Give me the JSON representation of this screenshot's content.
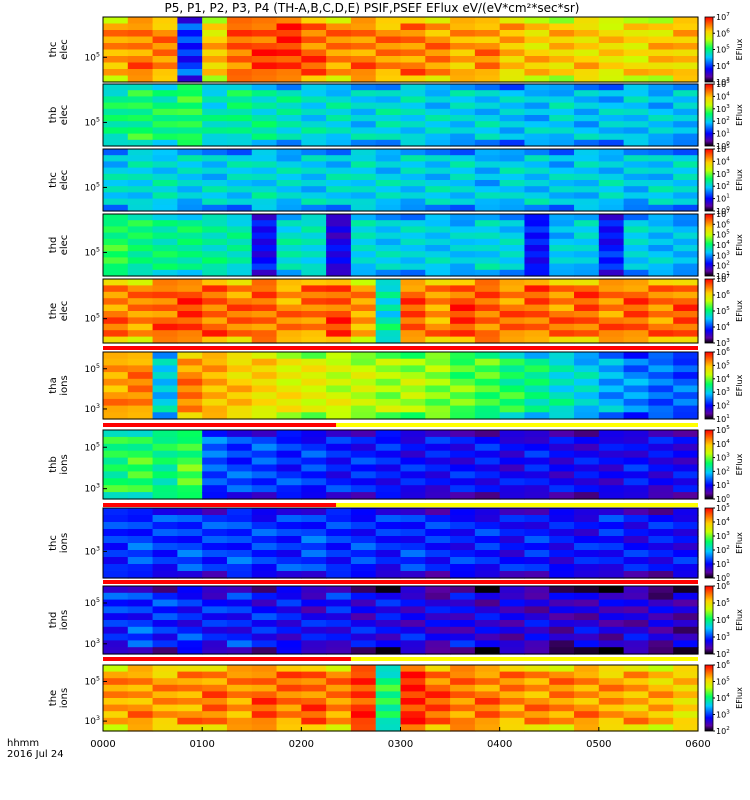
{
  "title": "P5, P1, P2, P3, P4 (TH-A,B,C,D,E) PSIF,PSEF EFlux eV/(eV*cm²*sec*sr)",
  "colorbar_label": "EFlux",
  "footer": {
    "time_format": "hhmm",
    "date": "2016 Jul 24"
  },
  "x_ticks": [
    "0000",
    "0100",
    "0200",
    "0300",
    "0400",
    "0500",
    "0600"
  ],
  "colors": {
    "status_red": "#ff0000",
    "status_yellow": "#ffff00",
    "background": "#ffffff"
  },
  "chart_data": {
    "type": "heatmap",
    "x_range": [
      "0000",
      "0600"
    ],
    "x_unit": "hhmm",
    "panels": [
      {
        "probe": "thc",
        "species": "elec",
        "y_tick": "10^5",
        "colorbar": {
          "min_exp": 3,
          "max_exp": 7
        },
        "profile": [
          6.3,
          6.5,
          6.4,
          4.0,
          6.1,
          6.6,
          6.7,
          6.8,
          6.6,
          6.4,
          6.5,
          6.4,
          6.5,
          6.4,
          6.3,
          6.4,
          6.2,
          6.1,
          6.1,
          6.1,
          6.0,
          6.0,
          6.1,
          6.2
        ]
      },
      {
        "probe": "thb",
        "species": "elec",
        "y_tick": "10^5",
        "colorbar": {
          "min_exp": 0,
          "max_exp": 5
        },
        "profile": [
          2.4,
          2.6,
          2.5,
          2.7,
          2.2,
          2.4,
          2.3,
          2.2,
          2.1,
          2.1,
          2.0,
          2.1,
          2.1,
          2.0,
          2.0,
          2.0,
          1.9,
          1.9,
          2.0,
          1.9,
          1.9,
          2.0,
          1.9,
          1.9
        ]
      },
      {
        "probe": "thc",
        "species": "elec",
        "y_tick": "10^5",
        "colorbar": {
          "min_exp": 0,
          "max_exp": 5
        },
        "profile": [
          2.0,
          2.1,
          2.1,
          2.0,
          2.0,
          2.0,
          2.1,
          2.0,
          2.0,
          2.0,
          2.1,
          2.0,
          2.0,
          2.0,
          2.0,
          1.9,
          2.0,
          2.0,
          1.9,
          2.0,
          2.0,
          1.9,
          2.0,
          2.0
        ]
      },
      {
        "probe": "thd",
        "species": "elec",
        "y_tick": "10^5",
        "colorbar": {
          "min_exp": 1,
          "max_exp": 7
        },
        "profile": [
          4.2,
          4.0,
          3.9,
          3.9,
          3.8,
          3.7,
          2.2,
          3.6,
          3.6,
          2.0,
          3.5,
          3.4,
          3.4,
          3.4,
          3.3,
          3.5,
          3.4,
          2.3,
          3.3,
          3.4,
          2.3,
          3.4,
          3.3,
          3.2
        ]
      },
      {
        "probe": "the",
        "species": "elec",
        "y_tick": "10^5",
        "colorbar": {
          "min_exp": 3,
          "max_exp": 7
        },
        "profile": [
          6.5,
          6.4,
          6.6,
          6.7,
          6.6,
          6.5,
          6.6,
          6.4,
          6.5,
          6.7,
          6.3,
          4.8,
          6.6,
          6.4,
          6.7,
          6.6,
          6.5,
          6.6,
          6.5,
          6.6,
          6.5,
          6.6,
          6.5,
          6.6
        ]
      },
      {
        "probe": "tha",
        "species": "ions",
        "y_ticks": [
          "10^5",
          "10^3"
        ],
        "colorbar": {
          "min_exp": 1,
          "max_exp": 6
        },
        "profile": [
          5.2,
          5.3,
          3.0,
          5.3,
          5.1,
          4.9,
          4.8,
          4.6,
          4.5,
          4.4,
          4.3,
          4.2,
          4.2,
          4.1,
          3.9,
          3.8,
          3.6,
          3.4,
          3.2,
          3.0,
          2.8,
          2.6,
          2.5,
          2.4
        ],
        "status_bar_red_until": "0221"
      },
      {
        "probe": "thb",
        "species": "ions",
        "y_ticks": [
          "10^5",
          "10^3"
        ],
        "colorbar": {
          "min_exp": 0,
          "max_exp": 5
        },
        "profile": [
          2.6,
          2.7,
          2.5,
          2.8,
          1.4,
          1.3,
          1.3,
          1.2,
          1.2,
          1.1,
          1.1,
          1.1,
          1.0,
          1.0,
          1.0,
          1.0,
          0.9,
          1.0,
          0.9,
          0.9,
          0.9,
          1.0,
          0.9,
          0.9
        ],
        "status_bar_red_until": "0221"
      },
      {
        "probe": "thc",
        "species": "ions",
        "y_tick": "10^3",
        "colorbar": {
          "min_exp": 0,
          "max_exp": 5
        },
        "profile": [
          1.2,
          1.3,
          1.2,
          1.3,
          1.2,
          1.3,
          1.2,
          1.2,
          1.3,
          1.2,
          1.2,
          1.1,
          1.2,
          1.1,
          1.1,
          1.1,
          1.0,
          1.1,
          1.0,
          1.0,
          1.1,
          1.0,
          1.0,
          1.0
        ],
        "status_bar_red_until": "0600"
      },
      {
        "probe": "thd",
        "species": "ions",
        "y_ticks": [
          "10^5",
          "10^3"
        ],
        "colorbar": {
          "min_exp": 2,
          "max_exp": 6
        },
        "profile": [
          2.9,
          3.0,
          2.9,
          2.9,
          2.8,
          2.9,
          2.8,
          2.8,
          2.7,
          2.8,
          2.7,
          2.7,
          2.7,
          2.6,
          2.7,
          2.6,
          2.6,
          2.6,
          2.5,
          2.6,
          2.5,
          2.6,
          2.5,
          2.5
        ],
        "status_bar_red_until": "0230"
      },
      {
        "probe": "the",
        "species": "ions",
        "y_ticks": [
          "10^5",
          "10^3"
        ],
        "colorbar": {
          "min_exp": 2,
          "max_exp": 6
        },
        "profile": [
          5.3,
          5.4,
          5.3,
          5.4,
          5.5,
          5.4,
          5.6,
          5.5,
          5.6,
          5.4,
          5.8,
          4.0,
          5.9,
          5.6,
          5.5,
          5.5,
          5.4,
          5.4,
          5.4,
          5.4,
          5.3,
          5.3,
          5.2,
          5.1
        ]
      }
    ]
  }
}
